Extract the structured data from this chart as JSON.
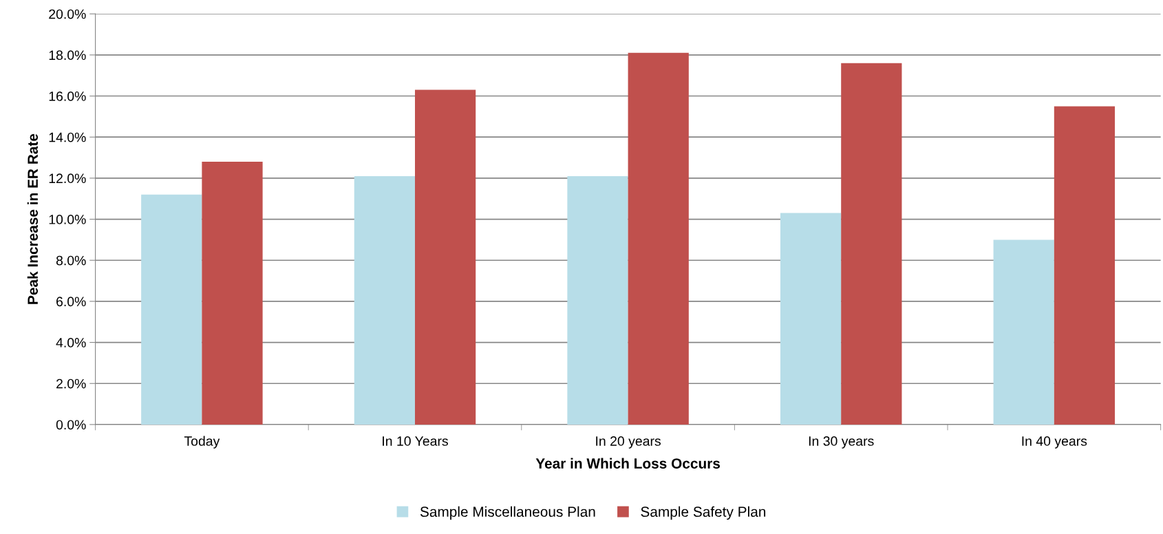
{
  "chart_data": {
    "type": "bar",
    "xlabel": "Year in Which Loss Occurs",
    "ylabel": "Peak Increase in ER Rate",
    "categories": [
      "Today",
      "In 10 Years",
      "In 20 years",
      "In 30 years",
      "In 40 years"
    ],
    "series": [
      {
        "name": "Sample Miscellaneous Plan",
        "color": "#b7dde8",
        "values": [
          11.2,
          12.1,
          12.1,
          10.3,
          9.0
        ]
      },
      {
        "name": "Sample Safety Plan",
        "color": "#c0504d",
        "values": [
          12.8,
          16.3,
          18.1,
          17.6,
          15.5
        ]
      }
    ],
    "ylim": [
      0,
      20
    ],
    "yticks": [
      {
        "value": 0,
        "label": "0.0%"
      },
      {
        "value": 2,
        "label": "2.0%"
      },
      {
        "value": 4,
        "label": "4.0%"
      },
      {
        "value": 6,
        "label": "6.0%"
      },
      {
        "value": 8,
        "label": "8.0%"
      },
      {
        "value": 10,
        "label": "10.0%"
      },
      {
        "value": 12,
        "label": "12.0%"
      },
      {
        "value": 14,
        "label": "14.0%"
      },
      {
        "value": 16,
        "label": "16.0%"
      },
      {
        "value": 18,
        "label": "18.0%"
      },
      {
        "value": 20,
        "label": "20.0%"
      }
    ],
    "grid": "y",
    "legend": "bottom"
  }
}
